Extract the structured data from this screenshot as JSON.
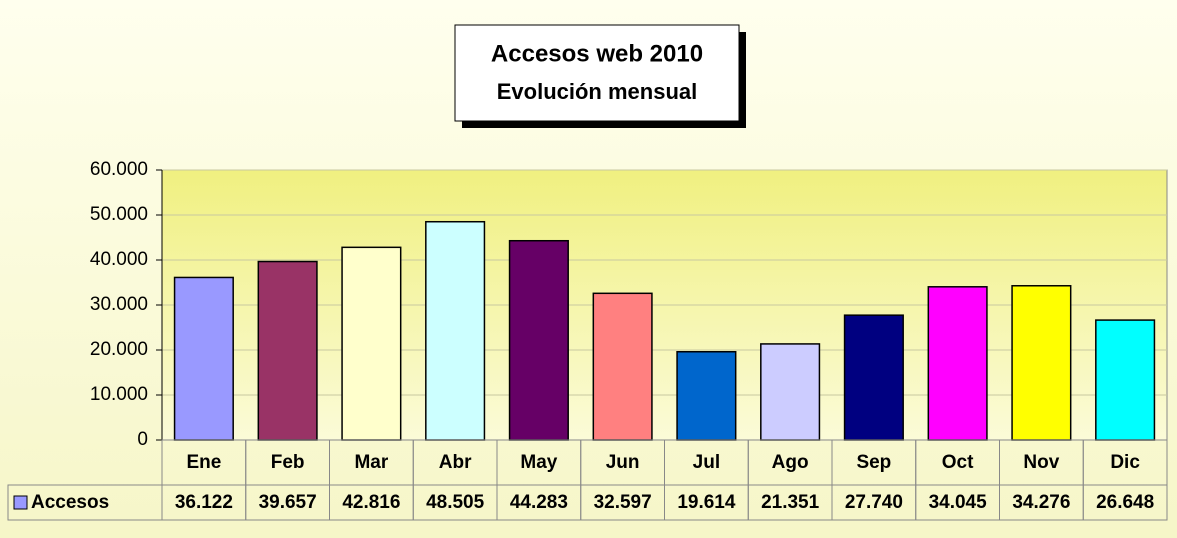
{
  "chart_data": {
    "type": "bar",
    "title": "Accesos web 2010",
    "subtitle": "Evolución mensual",
    "categories": [
      "Ene",
      "Feb",
      "Mar",
      "Abr",
      "May",
      "Jun",
      "Jul",
      "Ago",
      "Sep",
      "Oct",
      "Nov",
      "Dic"
    ],
    "series": [
      {
        "name": "Accesos",
        "color": "#9999ff",
        "colors": [
          "#9999ff",
          "#993366",
          "#ffffcc",
          "#ccffff",
          "#660066",
          "#ff8080",
          "#0066cc",
          "#ccccff",
          "#000080",
          "#ff00ff",
          "#ffff00",
          "#00ffff"
        ],
        "values": [
          36122,
          39657,
          42816,
          48505,
          44283,
          32597,
          19614,
          21351,
          27740,
          34045,
          34276,
          26648
        ],
        "value_labels": [
          "36.122",
          "39.657",
          "42.816",
          "48.505",
          "44.283",
          "32.597",
          "19.614",
          "21.351",
          "27.740",
          "34.045",
          "34.276",
          "26.648"
        ]
      }
    ],
    "ylim": [
      0,
      60000
    ],
    "yticks": [
      0,
      {
        "value": 10000,
        "label": "10.000"
      },
      {
        "value": 20000,
        "label": "20.000"
      },
      {
        "value": 30000,
        "label": "30.000"
      },
      {
        "value": 40000,
        "label": "40.000"
      },
      {
        "value": 50000,
        "label": "50.000"
      },
      {
        "value": 60000,
        "label": "60.000"
      }
    ],
    "grid": true
  }
}
